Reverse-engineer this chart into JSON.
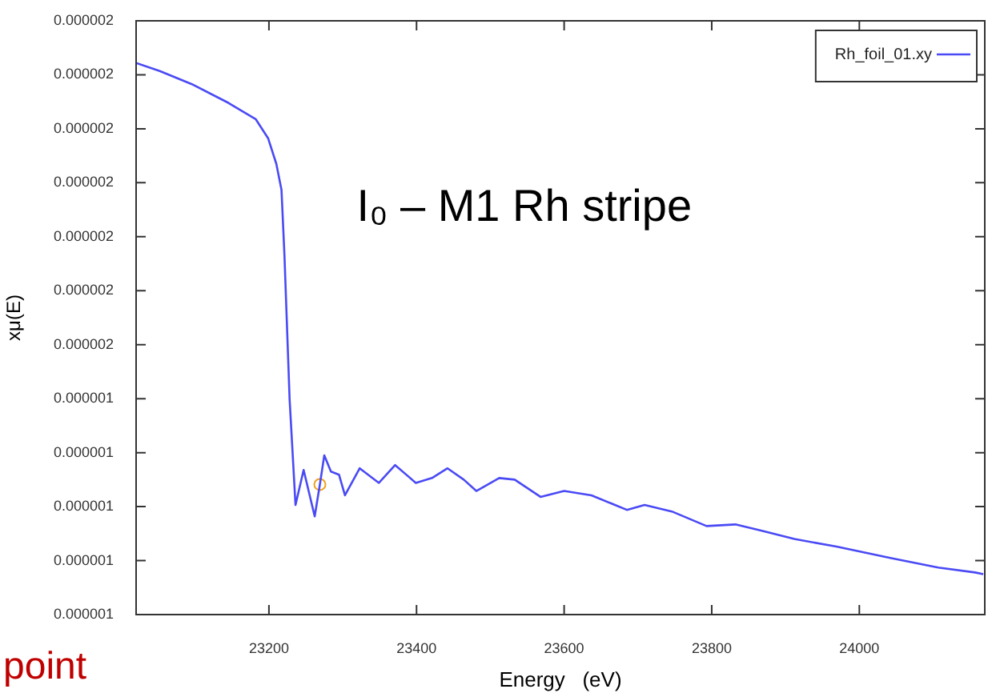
{
  "chart_data": {
    "type": "line",
    "xlabel": "Energy   (eV)",
    "ylabel": "xμ(E)",
    "xlim": [
      23020,
      24170
    ],
    "xticks": [
      23200,
      23400,
      23600,
      23800,
      24000
    ],
    "ylim": [
      1.05e-06,
      2.15e-06
    ],
    "yticks": [
      {
        "value": 1.05e-06,
        "label": "0.000001"
      },
      {
        "value": 1.15e-06,
        "label": "0.000001"
      },
      {
        "value": 1.25e-06,
        "label": "0.000001"
      },
      {
        "value": 1.35e-06,
        "label": "0.000001"
      },
      {
        "value": 1.45e-06,
        "label": "0.000001"
      },
      {
        "value": 1.55e-06,
        "label": "0.000002"
      },
      {
        "value": 1.65e-06,
        "label": "0.000002"
      },
      {
        "value": 1.75e-06,
        "label": "0.000002"
      },
      {
        "value": 1.85e-06,
        "label": "0.000002"
      },
      {
        "value": 1.95e-06,
        "label": "0.000002"
      },
      {
        "value": 2.05e-06,
        "label": "0.000002"
      },
      {
        "value": 2.15e-06,
        "label": "0.000002"
      }
    ],
    "grid": false,
    "legend": "top right",
    "marker": "none",
    "line_style": "solid",
    "annotations": [
      "point",
      "I₀ – M1 Rh stripe"
    ],
    "series": [
      {
        "name": "Rh_foil_01.xy",
        "color": "#4a4af5",
        "x": [
          23020,
          23052,
          23095,
          23145,
          23182,
          23199,
          23210,
          23217,
          23221,
          23228,
          23236,
          23247,
          23262,
          23269,
          23275,
          23284,
          23295,
          23303,
          23323,
          23349,
          23371,
          23399,
          23421,
          23442,
          23464,
          23481,
          23512,
          23533,
          23568,
          23600,
          23637,
          23685,
          23709,
          23746,
          23793,
          23832,
          23869,
          23912,
          23969,
          24042,
          24107,
          24157,
          24168
        ],
        "values": [
          2.072e-06,
          2.057e-06,
          2.033e-06,
          1.998e-06,
          1.968e-06,
          1.932e-06,
          1.885e-06,
          1.837e-06,
          1.716e-06,
          1.449e-06,
          1.253e-06,
          1.318e-06,
          1.232e-06,
          1.291e-06,
          1.345e-06,
          1.315e-06,
          1.309e-06,
          1.271e-06,
          1.321e-06,
          1.294e-06,
          1.327e-06,
          1.294e-06,
          1.303e-06,
          1.321e-06,
          1.3e-06,
          1.279e-06,
          1.303e-06,
          1.3e-06,
          1.268e-06,
          1.279e-06,
          1.271e-06,
          1.244e-06,
          1.253e-06,
          1.241e-06,
          1.214e-06,
          1.217e-06,
          1.205e-06,
          1.19e-06,
          1.176e-06,
          1.155e-06,
          1.137e-06,
          1.128e-06,
          1.125e-06
        ]
      },
      {
        "type": "scatter",
        "marker": "circle",
        "color": "#f0a020",
        "x": [
          23269
        ],
        "values": [
          1.291e-06
        ]
      }
    ]
  }
}
